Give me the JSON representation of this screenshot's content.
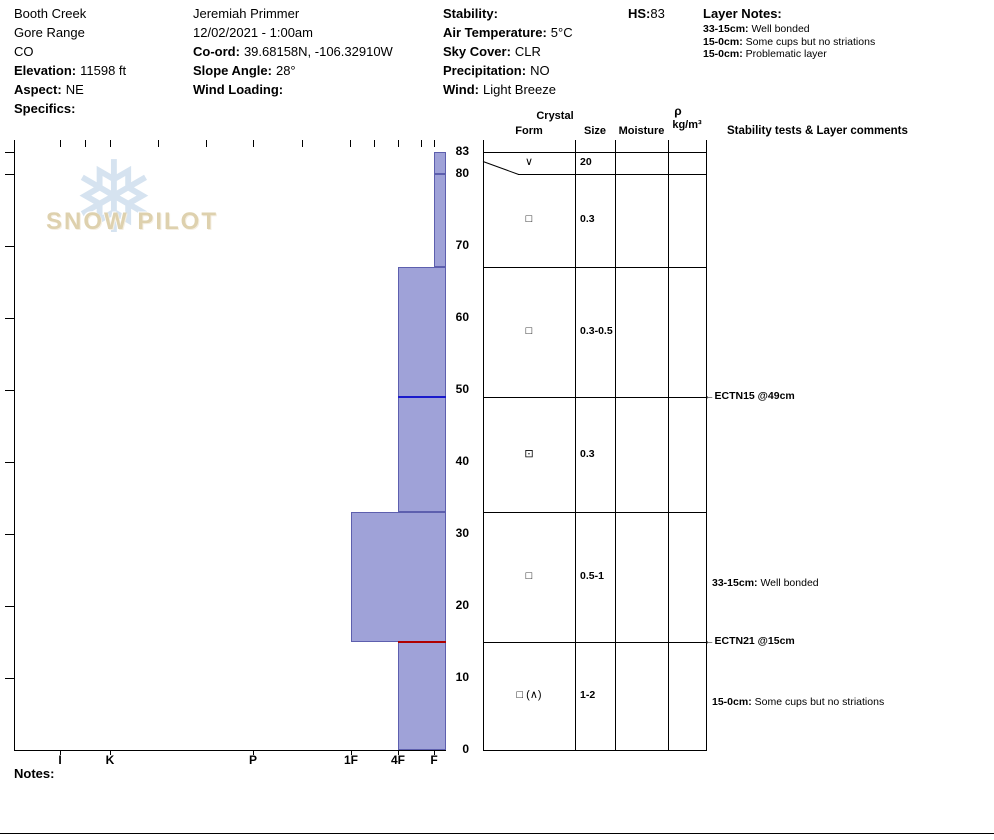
{
  "site_info": {
    "name": "Booth Creek",
    "range": "Gore Range",
    "state": "CO",
    "elevation_label": "Elevation:",
    "elevation_value": "11598 ft",
    "aspect_label": "Aspect:",
    "aspect_value": "NE",
    "specifics_label": "Specifics:",
    "specifics_value": ""
  },
  "observer_info": {
    "observer": "Jeremiah Primmer",
    "datetime": "12/02/2021 - 1:00am",
    "coord_label": "Co-ord:",
    "coord_value": "39.68158N, -106.32910W",
    "slope_label": "Slope Angle:",
    "slope_value": "28°",
    "wind_loading_label": "Wind Loading:",
    "wind_loading_value": ""
  },
  "conditions": {
    "stability_label": "Stability:",
    "stability_value": "",
    "air_temp_label": "Air Temperature:",
    "air_temp_value": "5°C",
    "sky_label": "Sky Cover:",
    "sky_value": "CLR",
    "precip_label": "Precipitation:",
    "precip_value": "NO",
    "wind_label": "Wind:",
    "wind_value": "Light Breeze"
  },
  "hs": {
    "label": "HS:",
    "value": "83"
  },
  "layer_notes": {
    "title": "Layer Notes:",
    "notes": [
      {
        "label": "33-15cm:",
        "text": "Well bonded"
      },
      {
        "label": "15-0cm:",
        "text": "Some cups but no striations"
      },
      {
        "label": "15-0cm:",
        "text": "Problematic layer"
      }
    ]
  },
  "table_headers": {
    "crystal": "Crystal",
    "form": "Form",
    "size": "Size",
    "moisture": "Moisture",
    "rho": "ρ",
    "rho_unit": "kg/m³",
    "stability": "Stability tests & Layer comments"
  },
  "watermark": {
    "text": "SNOW PILOT"
  },
  "notes_label": "Notes:",
  "chart_data": {
    "type": "bar",
    "subtype": "snow-profile-hardness",
    "depth_unit": "cm",
    "hs_cm": 83,
    "depth_axis_ticks": [
      0,
      10,
      20,
      30,
      40,
      50,
      60,
      70,
      80,
      83
    ],
    "hardness_axis_labels": [
      "I",
      "K",
      "P",
      "1F",
      "4F",
      "F"
    ],
    "layers": [
      {
        "top_cm": 83,
        "bottom_cm": 80,
        "hardness": "F",
        "grain_form_symbol": "∨",
        "grain_size_mm": "20"
      },
      {
        "top_cm": 80,
        "bottom_cm": 67,
        "hardness": "F",
        "grain_form_symbol": "□",
        "grain_size_mm": "0.3"
      },
      {
        "top_cm": 67,
        "bottom_cm": 49,
        "hardness": "4F",
        "grain_form_symbol": "□",
        "grain_size_mm": "0.3-0.5"
      },
      {
        "top_cm": 49,
        "bottom_cm": 33,
        "hardness": "4F",
        "grain_form_symbol": "⊡",
        "grain_size_mm": "0.3"
      },
      {
        "top_cm": 33,
        "bottom_cm": 15,
        "hardness": "1F",
        "grain_form_symbol": "□",
        "grain_size_mm": "0.5-1"
      },
      {
        "top_cm": 15,
        "bottom_cm": 0,
        "hardness": "4F",
        "grain_form_symbol": "□ (∧)",
        "grain_size_mm": "1-2"
      }
    ],
    "stability_tests": [
      {
        "label": "ECTN15 @49cm",
        "depth_cm": 49,
        "line_color": "#1a1acc"
      },
      {
        "label": "ECTN21 @15cm",
        "depth_cm": 15,
        "line_color": "#b00000"
      }
    ],
    "layer_comments": [
      {
        "layer_index": 4,
        "label": "33-15cm:",
        "text": "Well bonded"
      },
      {
        "layer_index": 5,
        "label": "15-0cm:",
        "text": "Some cups but no striations"
      }
    ],
    "bar_fill": "#9fa2d8",
    "bar_border": "#5d5fae"
  }
}
